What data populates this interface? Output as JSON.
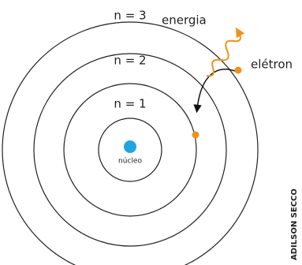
{
  "orbits": [
    {
      "label": "n = 1"
    },
    {
      "label": "n = 2"
    },
    {
      "label": "n = 3"
    }
  ],
  "nucleus": {
    "label": "núcleo"
  },
  "energy": {
    "label": "energia"
  },
  "electron": {
    "label": "elétron"
  },
  "credit": "ADILSON SECCO"
}
